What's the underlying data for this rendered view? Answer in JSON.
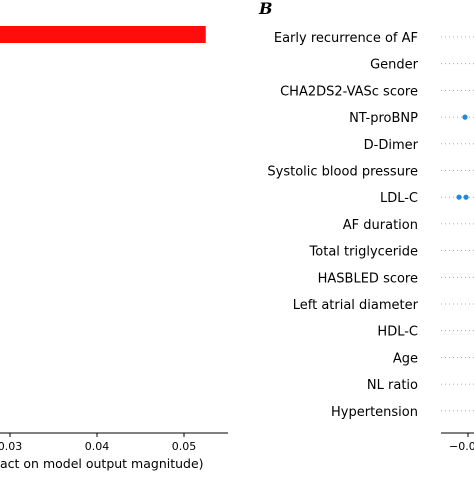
{
  "chart_data": [
    {
      "type": "bar",
      "orientation": "horizontal",
      "xlabel": "act on model output magnitude)",
      "xticks": [
        "0.03",
        "0.04",
        "0.05"
      ],
      "xtick_values": [
        0.03,
        0.04,
        0.05
      ],
      "visible_bar_value": 0.0525,
      "bar_color": "#ff0d0d",
      "xlim": [
        0.02,
        0.055
      ]
    },
    {
      "type": "scatter",
      "panel_label": "B",
      "features": [
        "Early recurrence of AF",
        "Gender",
        "CHA2DS2-VASc score",
        "NT-proBNP",
        "D-Dimer",
        "Systolic blood pressure",
        "LDL-C",
        "AF duration",
        "Total triglyceride",
        "HASBLED score",
        "Left atrial diameter",
        "HDL-C",
        "Age",
        "NL ratio",
        "Hypertension"
      ],
      "xtick_label": "−0.0",
      "point_color": "#1e88e5",
      "visible_points": [
        {
          "feature": "NT-proBNP"
        },
        {
          "feature": "LDL-C"
        },
        {
          "feature": "LDL-C"
        }
      ]
    }
  ]
}
